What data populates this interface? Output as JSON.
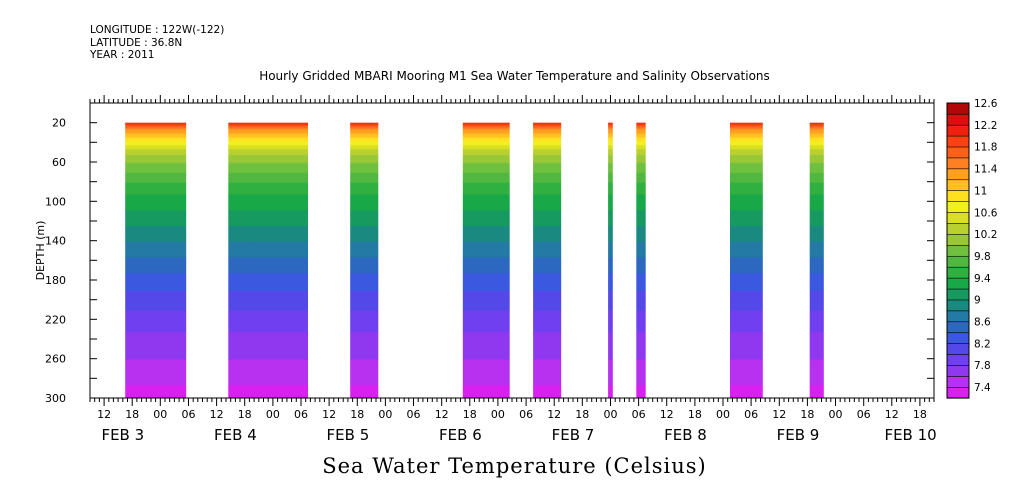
{
  "header": {
    "longitude": "LONGITUDE : 122W(-122)",
    "latitude": "LATITUDE : 36.8N",
    "year": "YEAR : 2011"
  },
  "chart_title": "Hourly Gridded MBARI Mooring M1 Sea Water Temperature and Salinity Observations",
  "bottom_title": "Sea Water Temperature (Celsius)",
  "chart_data": {
    "type": "heatmap",
    "title": "Hourly Gridded MBARI Mooring M1 Sea Water Temperature and Salinity Observations",
    "xlabel": "",
    "ylabel": "DEPTH (m)",
    "x_unit": "hours since FEB 3 00:00 (2011)",
    "xlim": [
      9,
      189
    ],
    "ylim": [
      0,
      300
    ],
    "y_inverted": true,
    "y_ticks": [
      20,
      60,
      100,
      140,
      180,
      220,
      260,
      300
    ],
    "x_hour_tick_labels": [
      {
        "t": 12,
        "label": "12"
      },
      {
        "t": 18,
        "label": "18"
      },
      {
        "t": 24,
        "label": "00"
      },
      {
        "t": 30,
        "label": "06"
      },
      {
        "t": 36,
        "label": "12"
      },
      {
        "t": 42,
        "label": "18"
      },
      {
        "t": 48,
        "label": "00"
      },
      {
        "t": 54,
        "label": "06"
      },
      {
        "t": 60,
        "label": "12"
      },
      {
        "t": 66,
        "label": "18"
      },
      {
        "t": 72,
        "label": "00"
      },
      {
        "t": 78,
        "label": "06"
      },
      {
        "t": 84,
        "label": "12"
      },
      {
        "t": 90,
        "label": "18"
      },
      {
        "t": 96,
        "label": "00"
      },
      {
        "t": 102,
        "label": "06"
      },
      {
        "t": 108,
        "label": "12"
      },
      {
        "t": 114,
        "label": "18"
      },
      {
        "t": 120,
        "label": "00"
      },
      {
        "t": 126,
        "label": "06"
      },
      {
        "t": 132,
        "label": "12"
      },
      {
        "t": 138,
        "label": "18"
      },
      {
        "t": 144,
        "label": "00"
      },
      {
        "t": 150,
        "label": "06"
      },
      {
        "t": 156,
        "label": "12"
      },
      {
        "t": 162,
        "label": "18"
      },
      {
        "t": 168,
        "label": "00"
      },
      {
        "t": 174,
        "label": "06"
      },
      {
        "t": 180,
        "label": "12"
      },
      {
        "t": 186,
        "label": "18"
      }
    ],
    "x_day_labels": [
      {
        "t": 16,
        "label": "FEB  3"
      },
      {
        "t": 40,
        "label": "FEB  4"
      },
      {
        "t": 64,
        "label": "FEB  5"
      },
      {
        "t": 88,
        "label": "FEB  6"
      },
      {
        "t": 112,
        "label": "FEB  7"
      },
      {
        "t": 136,
        "label": "FEB  8"
      },
      {
        "t": 160,
        "label": "FEB  9"
      },
      {
        "t": 184,
        "label": "FEB 10"
      }
    ],
    "data_segments": [
      {
        "start": 16.5,
        "end": 29.5
      },
      {
        "start": 38.5,
        "end": 55.5
      },
      {
        "start": 64.5,
        "end": 70.5
      },
      {
        "start": 88.5,
        "end": 98.5
      },
      {
        "start": 103.5,
        "end": 109.5
      },
      {
        "start": 119.5,
        "end": 120.5
      },
      {
        "start": 125.5,
        "end": 127.5
      },
      {
        "start": 145.5,
        "end": 152.5
      },
      {
        "start": 162.5,
        "end": 165.5
      }
    ],
    "color_levels": [
      7.4,
      7.6,
      7.8,
      8.0,
      8.2,
      8.4,
      8.6,
      8.8,
      9.0,
      9.2,
      9.4,
      9.6,
      9.8,
      10.0,
      10.2,
      10.4,
      10.6,
      10.8,
      11.0,
      11.2,
      11.4,
      11.6,
      11.8,
      12.0,
      12.2,
      12.4,
      12.6,
      12.8
    ],
    "colorbar_labels": [
      "7.4",
      "7.8",
      "8.2",
      "8.6",
      "9",
      "9.4",
      "9.8",
      "10.2",
      "10.6",
      "11",
      "11.4",
      "11.8",
      "12.2",
      "12.6"
    ],
    "colors": [
      "#d820f0",
      "#b830f0",
      "#9038f0",
      "#7040f0",
      "#5548e8",
      "#3a58e0",
      "#2c68c0",
      "#237aa4",
      "#1a8a80",
      "#169a60",
      "#18a848",
      "#30b040",
      "#50b840",
      "#70c040",
      "#98c838",
      "#b8d030",
      "#d8e020",
      "#f0f020",
      "#ffe020",
      "#ffc020",
      "#ffa020",
      "#ff8020",
      "#ff6018",
      "#ff4010",
      "#f02010",
      "#d81010",
      "#b00808"
    ],
    "temperature_profile": [
      {
        "depth": 20,
        "temp": 12.3
      },
      {
        "depth": 30,
        "temp": 11.4
      },
      {
        "depth": 40,
        "temp": 10.9
      },
      {
        "depth": 50,
        "temp": 10.5
      },
      {
        "depth": 60,
        "temp": 10.2
      },
      {
        "depth": 80,
        "temp": 9.8
      },
      {
        "depth": 100,
        "temp": 9.5
      },
      {
        "depth": 140,
        "temp": 9.0
      },
      {
        "depth": 180,
        "temp": 8.5
      },
      {
        "depth": 220,
        "temp": 8.1
      },
      {
        "depth": 260,
        "temp": 7.8
      },
      {
        "depth": 300,
        "temp": 7.5
      }
    ]
  }
}
